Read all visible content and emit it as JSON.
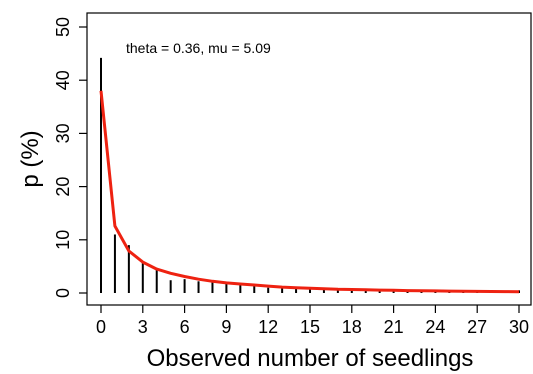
{
  "chart_data": {
    "type": "line",
    "xlabel": "Observed number of seedlings",
    "ylabel": "p (%)",
    "annotation": "theta = 0.36, mu = 5.09",
    "xlim": [
      0,
      30
    ],
    "ylim": [
      0,
      50
    ],
    "x_ticks": [
      0,
      3,
      6,
      9,
      12,
      15,
      18,
      21,
      24,
      27,
      30
    ],
    "y_ticks": [
      0,
      10,
      20,
      30,
      40,
      50
    ],
    "grid": false,
    "colors": {
      "observed": "#000000",
      "fitted": "#ee2211"
    },
    "observed": {
      "x": [
        0,
        1,
        2,
        3,
        4,
        5,
        6,
        7,
        8,
        9,
        10,
        11,
        12,
        13,
        14,
        15,
        16,
        17,
        18,
        19,
        20,
        21,
        22,
        23,
        24,
        25,
        26,
        27,
        28,
        29,
        30
      ],
      "y": [
        44.2,
        11.0,
        9.0,
        6.0,
        4.4,
        2.4,
        2.6,
        2.2,
        2.2,
        1.9,
        1.8,
        1.4,
        1.0,
        0.9,
        0.8,
        0.8,
        0.8,
        0.6,
        0.6,
        0.7,
        0.6,
        0.5,
        0.4,
        0.5,
        0.4,
        0.5,
        0.4,
        0.4,
        0.4,
        0.3,
        0.5
      ]
    },
    "fitted": {
      "x": [
        0,
        1,
        2,
        3,
        4,
        5,
        6,
        7,
        8,
        9,
        10,
        11,
        12,
        13,
        14,
        15,
        16,
        17,
        18,
        19,
        20,
        21,
        22,
        23,
        24,
        25,
        26,
        27,
        28,
        29,
        30
      ],
      "y": [
        38.0,
        12.6,
        7.9,
        5.8,
        4.5,
        3.7,
        3.1,
        2.6,
        2.2,
        1.9,
        1.7,
        1.5,
        1.3,
        1.1,
        1.0,
        0.9,
        0.8,
        0.7,
        0.65,
        0.6,
        0.55,
        0.5,
        0.45,
        0.42,
        0.39,
        0.36,
        0.33,
        0.31,
        0.29,
        0.27,
        0.25
      ]
    }
  }
}
